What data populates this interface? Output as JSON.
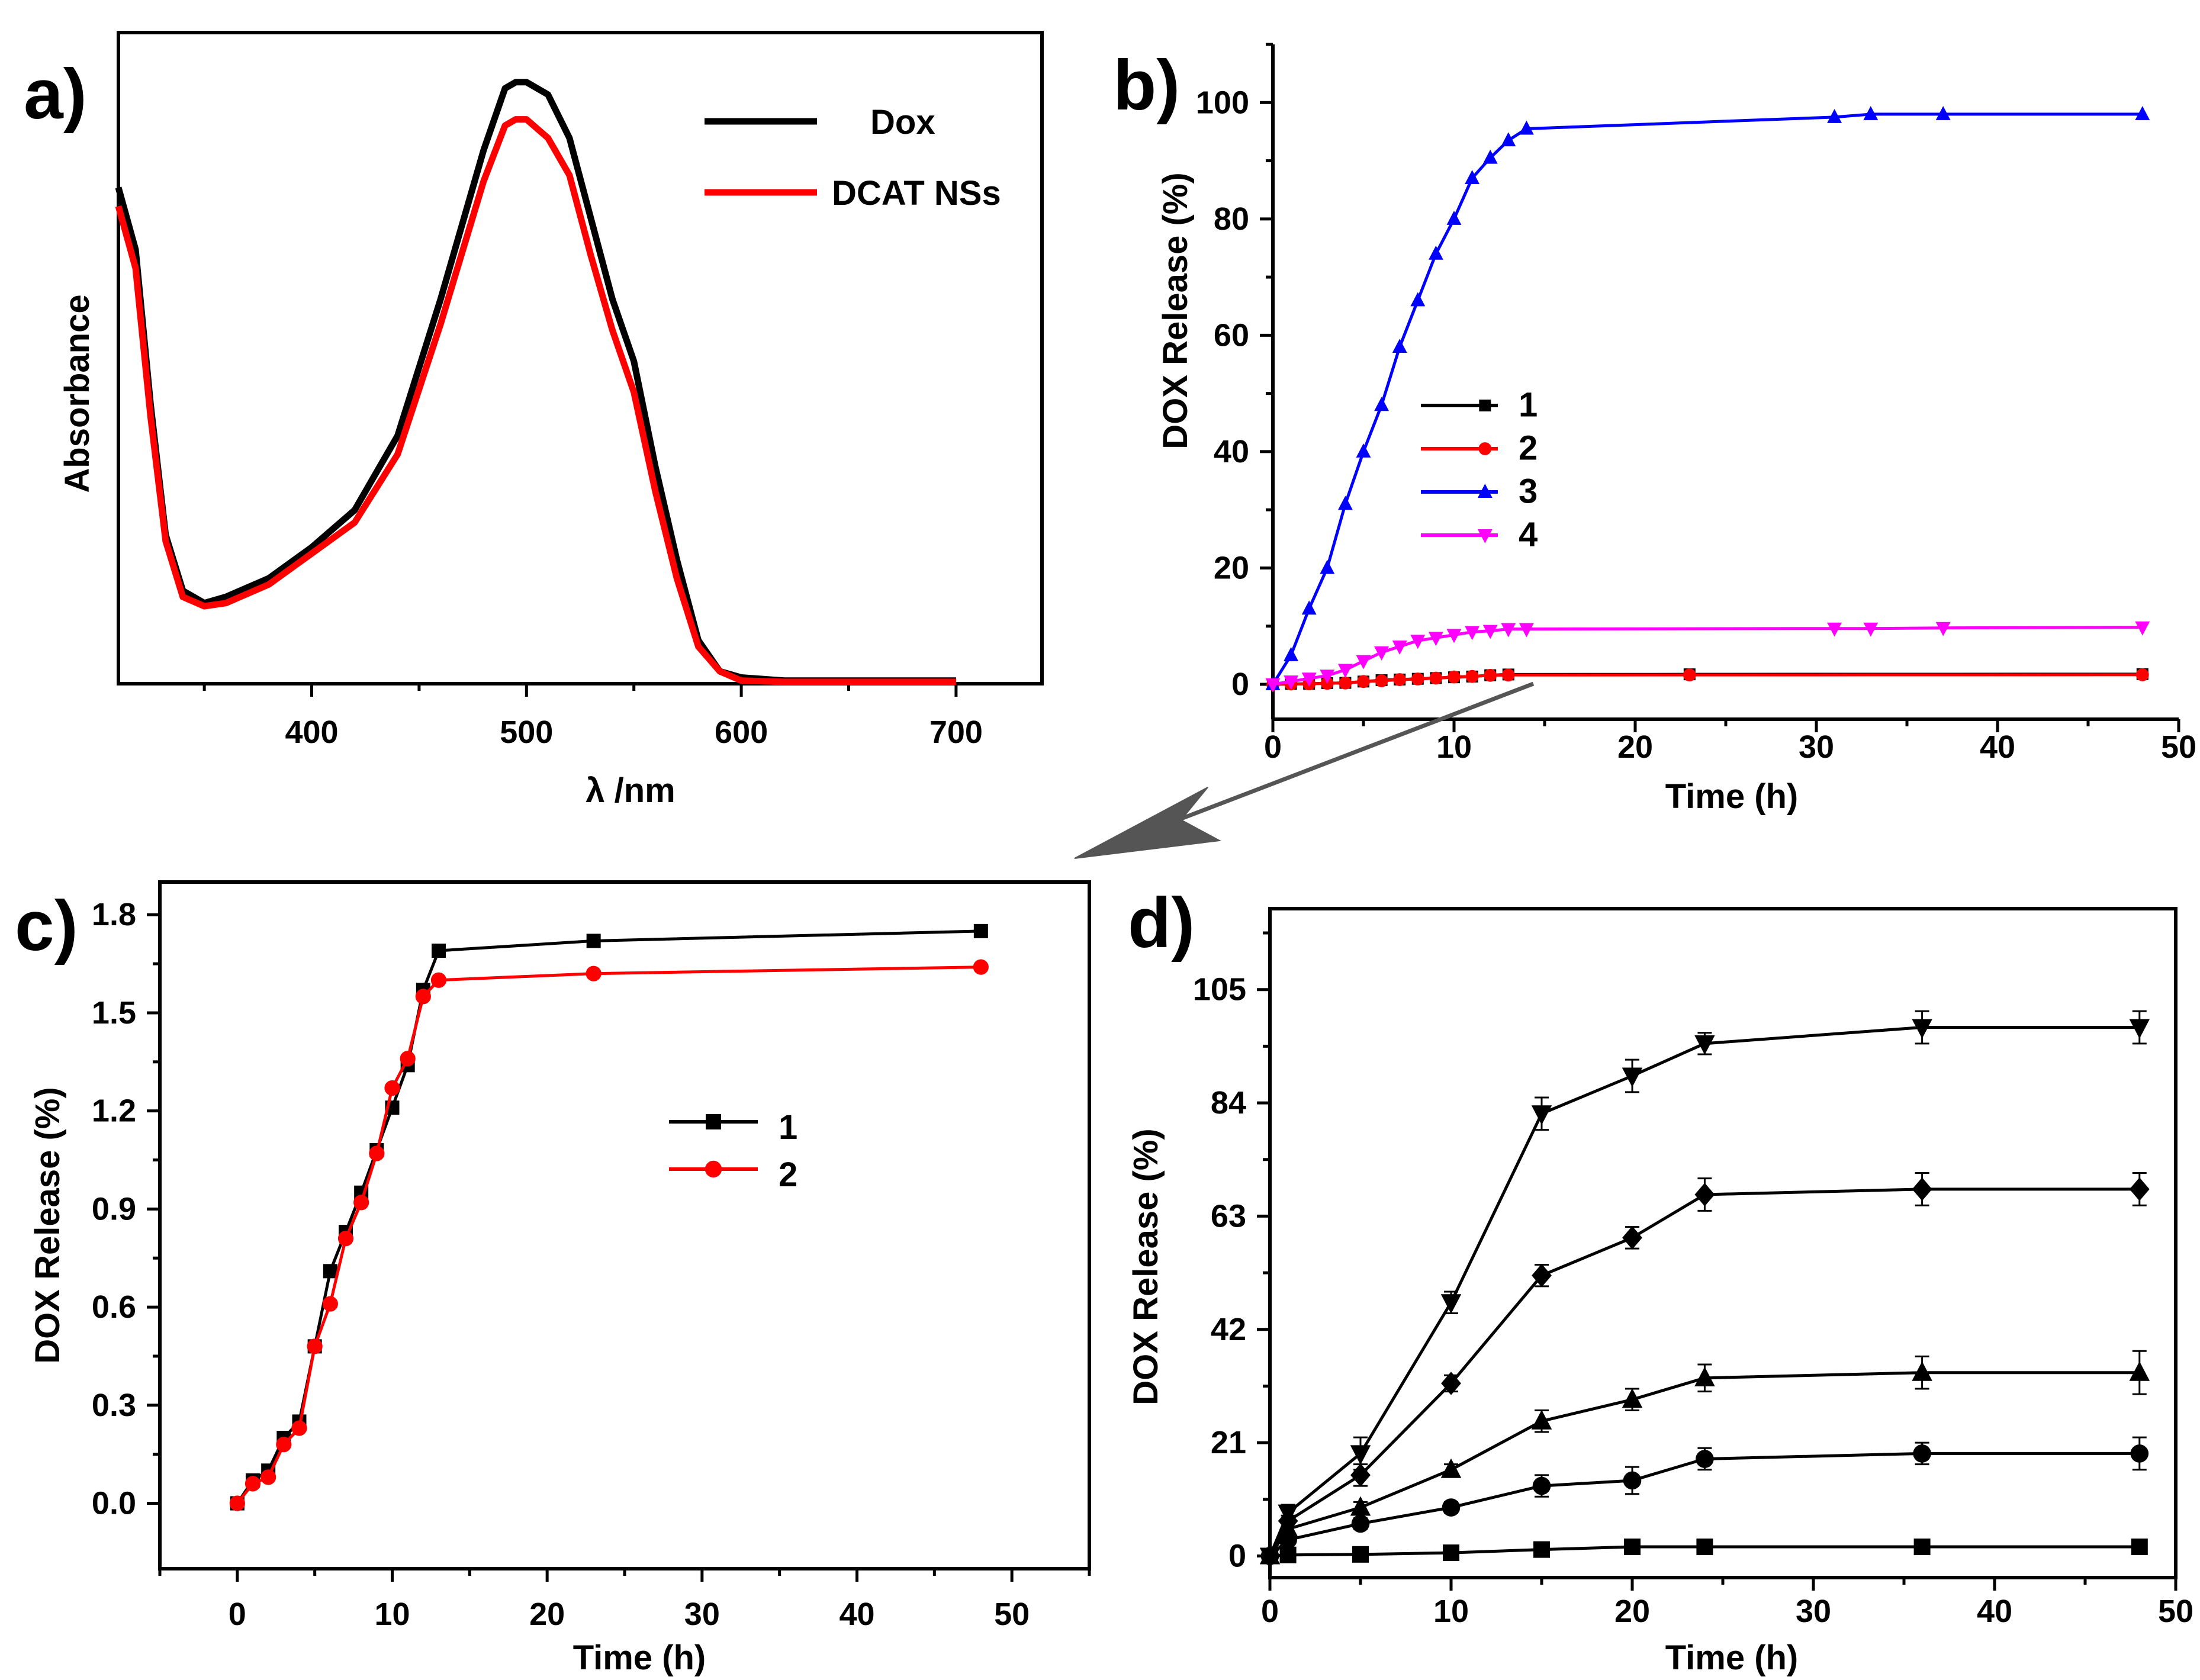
{
  "chart_data": [
    {
      "panel": "a)",
      "type": "line",
      "title": "",
      "xlabel": "λ /nm",
      "ylabel": "Absorbance",
      "xlim": [
        310,
        740
      ],
      "ylim": [
        0,
        1.05
      ],
      "xticks": [
        400,
        500,
        600,
        700
      ],
      "yticks": [],
      "legend": "top-right",
      "series": [
        {
          "name": "Dox",
          "color": "#000000",
          "x": [
            310,
            318,
            325,
            332,
            340,
            350,
            360,
            380,
            400,
            420,
            440,
            460,
            480,
            490,
            495,
            500,
            510,
            520,
            530,
            540,
            550,
            560,
            570,
            580,
            590,
            600,
            620,
            650,
            700
          ],
          "y": [
            0.8,
            0.7,
            0.45,
            0.24,
            0.15,
            0.13,
            0.14,
            0.17,
            0.22,
            0.28,
            0.4,
            0.62,
            0.86,
            0.96,
            0.97,
            0.97,
            0.95,
            0.88,
            0.75,
            0.62,
            0.52,
            0.35,
            0.2,
            0.07,
            0.02,
            0.01,
            0.005,
            0.005,
            0.005
          ]
        },
        {
          "name": "DCAT NSs",
          "color": "#ff0000",
          "x": [
            310,
            318,
            325,
            332,
            340,
            350,
            360,
            380,
            400,
            420,
            440,
            460,
            480,
            490,
            495,
            500,
            510,
            520,
            530,
            540,
            550,
            560,
            570,
            580,
            590,
            600,
            620,
            650,
            700
          ],
          "y": [
            0.77,
            0.67,
            0.43,
            0.23,
            0.14,
            0.125,
            0.13,
            0.16,
            0.21,
            0.26,
            0.37,
            0.58,
            0.81,
            0.9,
            0.91,
            0.91,
            0.88,
            0.82,
            0.69,
            0.57,
            0.47,
            0.31,
            0.17,
            0.06,
            0.02,
            0.005,
            0.003,
            0.003,
            0.003
          ]
        }
      ]
    },
    {
      "panel": "b)",
      "type": "line",
      "title": "",
      "xlabel": "Time (h)",
      "ylabel": "DOX Release (%)",
      "xlim": [
        0,
        50
      ],
      "ylim": [
        -6,
        110
      ],
      "xticks": [
        0,
        10,
        20,
        30,
        40,
        50
      ],
      "yticks": [
        0,
        20,
        40,
        60,
        80,
        100
      ],
      "legend": "middle-left",
      "series": [
        {
          "name": "1",
          "color": "#000000",
          "marker": "square",
          "x": [
            0,
            1,
            2,
            3,
            4,
            5,
            6,
            7,
            8,
            9,
            10,
            11,
            12,
            13,
            23,
            48
          ],
          "y": [
            0,
            0.07,
            0.1,
            0.2,
            0.25,
            0.48,
            0.71,
            0.83,
            0.95,
            1.08,
            1.21,
            1.34,
            1.57,
            1.69,
            1.72,
            1.75
          ]
        },
        {
          "name": "2",
          "color": "#ff0000",
          "marker": "circle",
          "x": [
            0,
            1,
            2,
            3,
            4,
            5,
            6,
            7,
            8,
            9,
            10,
            11,
            12,
            13,
            23,
            48
          ],
          "y": [
            0,
            0.06,
            0.08,
            0.18,
            0.23,
            0.48,
            0.61,
            0.81,
            0.92,
            1.07,
            1.27,
            1.36,
            1.55,
            1.6,
            1.62,
            1.64
          ]
        },
        {
          "name": "3",
          "color": "#0000ff",
          "marker": "triangle-up",
          "x": [
            0,
            1,
            2,
            3,
            4,
            5,
            6,
            7,
            8,
            9,
            10,
            11,
            12,
            13,
            14,
            31,
            33,
            37,
            48
          ],
          "y": [
            0,
            5,
            13,
            20,
            31,
            40,
            48,
            58,
            66,
            74,
            80,
            87,
            90.5,
            93.5,
            95.5,
            97.5,
            98,
            98,
            98
          ]
        },
        {
          "name": "4",
          "color": "#ff00ff",
          "marker": "triangle-down",
          "x": [
            0,
            1,
            2,
            3,
            4,
            5,
            6,
            7,
            8,
            9,
            10,
            11,
            12,
            13,
            14,
            31,
            33,
            37,
            48
          ],
          "y": [
            0,
            0.5,
            1,
            1.5,
            2.5,
            4,
            5.5,
            6.5,
            7.5,
            8,
            8.5,
            9,
            9.2,
            9.5,
            9.5,
            9.6,
            9.6,
            9.7,
            9.8
          ]
        }
      ]
    },
    {
      "panel": "c)",
      "type": "line",
      "title": "",
      "xlabel": "Time (h)",
      "ylabel": "DOX Release (%)",
      "xlim": [
        -5,
        55
      ],
      "ylim": [
        -0.2,
        1.9
      ],
      "xticks": [
        0,
        10,
        20,
        30,
        40,
        50
      ],
      "yticks": [
        0.0,
        0.3,
        0.6,
        0.9,
        1.2,
        1.5,
        1.8
      ],
      "ytick_labels": [
        "0.0",
        "0.3",
        "0.6",
        "0.9",
        "1.2",
        "1.5",
        "1.8"
      ],
      "legend": "center",
      "series": [
        {
          "name": "1",
          "color": "#000000",
          "marker": "square",
          "x": [
            0,
            1,
            2,
            3,
            4,
            5,
            6,
            7,
            8,
            9,
            10,
            11,
            12,
            13,
            23,
            48
          ],
          "y": [
            0,
            0.07,
            0.1,
            0.2,
            0.25,
            0.48,
            0.71,
            0.83,
            0.95,
            1.08,
            1.21,
            1.34,
            1.57,
            1.69,
            1.72,
            1.75
          ]
        },
        {
          "name": "2",
          "color": "#ff0000",
          "marker": "circle",
          "x": [
            0,
            1,
            2,
            3,
            4,
            5,
            6,
            7,
            8,
            9,
            10,
            11,
            12,
            13,
            23,
            48
          ],
          "y": [
            0,
            0.06,
            0.08,
            0.18,
            0.23,
            0.48,
            0.61,
            0.81,
            0.92,
            1.07,
            1.27,
            1.36,
            1.55,
            1.6,
            1.62,
            1.64
          ]
        }
      ]
    },
    {
      "panel": "d)",
      "type": "line",
      "title": "",
      "xlabel": "Time (h)",
      "ylabel": "DOX Release (%)",
      "xlim": [
        0,
        50
      ],
      "ylim": [
        -4,
        120
      ],
      "xticks": [
        0,
        10,
        20,
        30,
        40,
        50
      ],
      "yticks": [
        0,
        21,
        42,
        63,
        84,
        105
      ],
      "legend": "none",
      "series": [
        {
          "name": "square",
          "color": "#000000",
          "marker": "square",
          "x": [
            0,
            1,
            5,
            10,
            15,
            20,
            24,
            36,
            48
          ],
          "y": [
            0,
            0.2,
            0.3,
            0.6,
            1.2,
            1.7,
            1.7,
            1.7,
            1.7
          ],
          "err": [
            0,
            0.3,
            0.3,
            0.3,
            0.4,
            0.4,
            0.4,
            0.4,
            0.4
          ]
        },
        {
          "name": "circle",
          "color": "#000000",
          "marker": "circle",
          "x": [
            0,
            1,
            5,
            10,
            15,
            20,
            24,
            36,
            48
          ],
          "y": [
            0,
            3,
            6,
            9,
            13,
            14,
            18,
            19,
            19
          ],
          "err": [
            0,
            0.8,
            1,
            1,
            2,
            2.5,
            2,
            2,
            3
          ]
        },
        {
          "name": "triangle-up",
          "color": "#000000",
          "marker": "triangle-up",
          "x": [
            0,
            1,
            5,
            10,
            15,
            20,
            24,
            36,
            48
          ],
          "y": [
            0,
            5,
            9,
            16,
            25,
            29,
            33,
            34,
            34
          ],
          "err": [
            0,
            1,
            1,
            1,
            2,
            2,
            2.5,
            3,
            4
          ]
        },
        {
          "name": "diamond",
          "color": "#000000",
          "marker": "diamond",
          "x": [
            0,
            1,
            5,
            10,
            15,
            20,
            24,
            36,
            48
          ],
          "y": [
            0,
            6.5,
            15,
            32,
            52,
            59,
            67,
            68,
            68
          ],
          "err": [
            0,
            1,
            2,
            1.5,
            2,
            2,
            3,
            3,
            3
          ]
        },
        {
          "name": "triangle-down",
          "color": "#000000",
          "marker": "triangle-down",
          "x": [
            0,
            1,
            5,
            10,
            15,
            20,
            24,
            36,
            48
          ],
          "y": [
            0,
            8,
            19,
            47,
            82,
            89,
            95,
            98,
            98
          ],
          "err": [
            0,
            1.5,
            3,
            2,
            3,
            3,
            2,
            3,
            3
          ]
        }
      ]
    }
  ],
  "annotation": {
    "type": "arrow",
    "from_panel": "b)",
    "to_panel": "c)",
    "color": "#555555"
  }
}
